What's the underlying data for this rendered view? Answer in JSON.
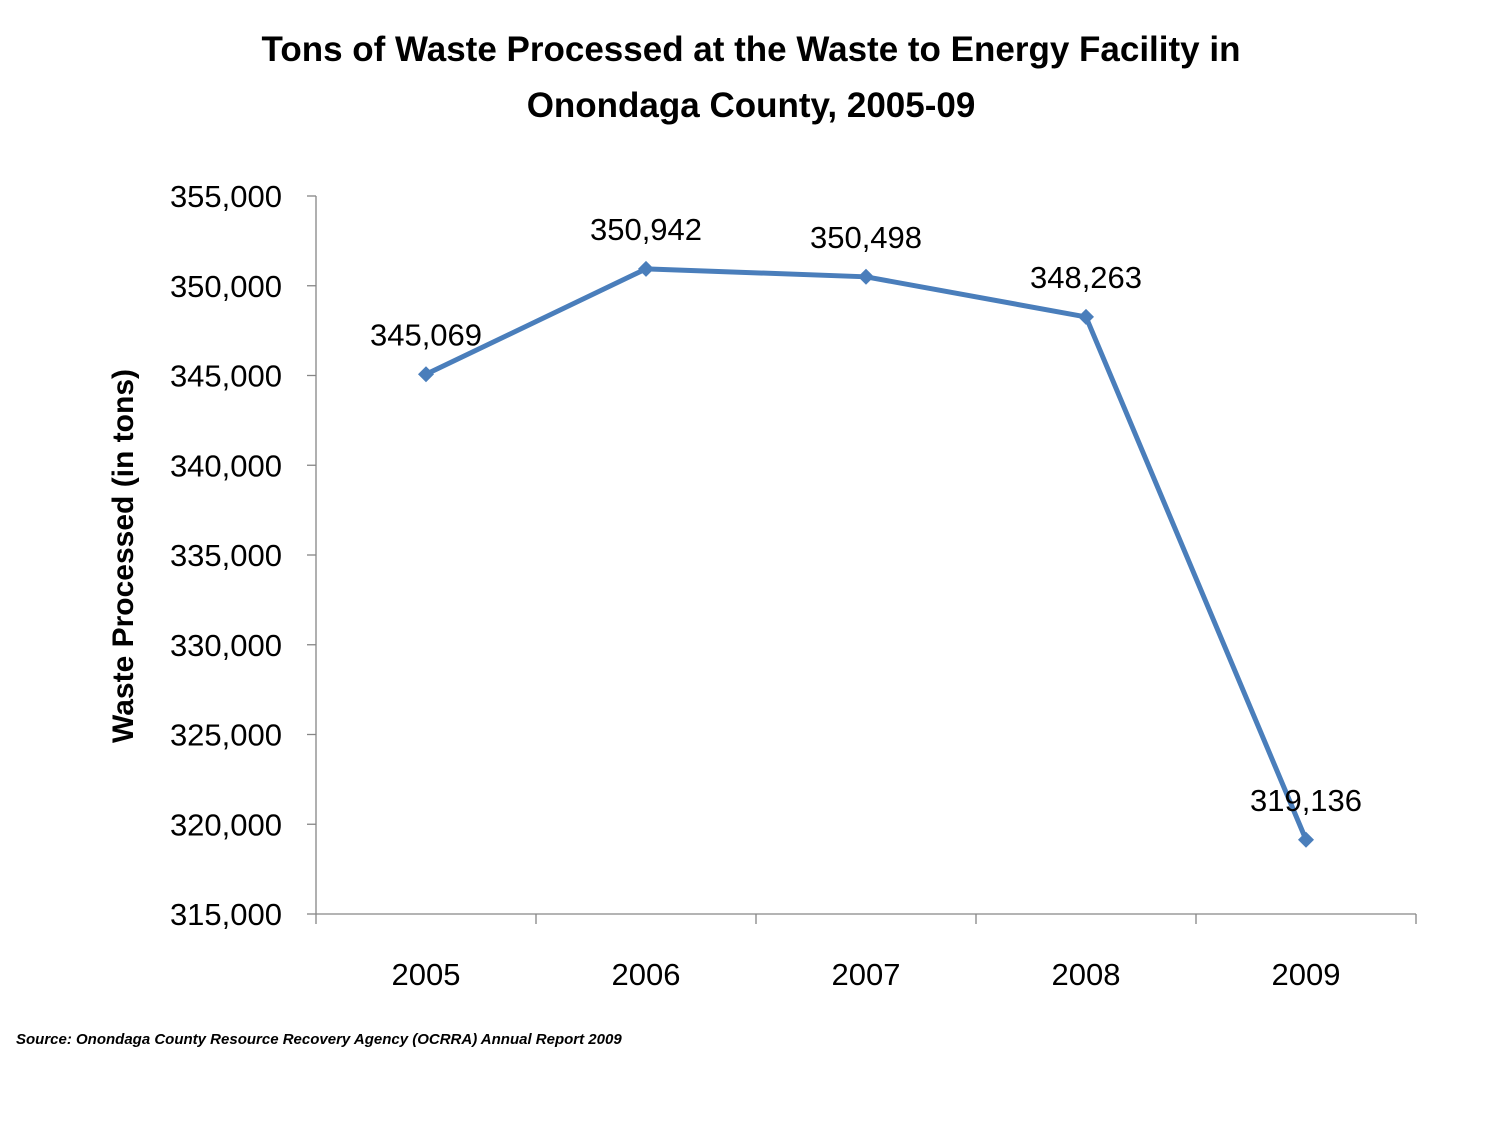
{
  "chart_data": {
    "type": "line",
    "title_lines": [
      "Tons of Waste Processed at the Waste to Energy Facility in",
      "Onondaga County, 2005-09"
    ],
    "categories": [
      "2005",
      "2006",
      "2007",
      "2008",
      "2009"
    ],
    "values": [
      345069,
      350942,
      350498,
      348263,
      319136
    ],
    "data_labels": [
      "345,069",
      "350,942",
      "350,498",
      "348,263",
      "319,136"
    ],
    "ylabel": "Waste  Processed (in tons)",
    "xlabel": "",
    "ylim": [
      315000,
      355000
    ],
    "y_ticks": [
      315000,
      320000,
      325000,
      330000,
      335000,
      340000,
      345000,
      350000,
      355000
    ],
    "y_tick_labels": [
      "315,000",
      "320,000",
      "325,000",
      "330,000",
      "335,000",
      "340,000",
      "345,000",
      "350,000",
      "355,000"
    ],
    "grid": false,
    "marker": "diamond",
    "line_color": "#4A7EBB",
    "axis_color": "#868686"
  },
  "source_note": "Source: Onondaga County Resource Recovery Agency (OCRRA) Annual Report 2009"
}
